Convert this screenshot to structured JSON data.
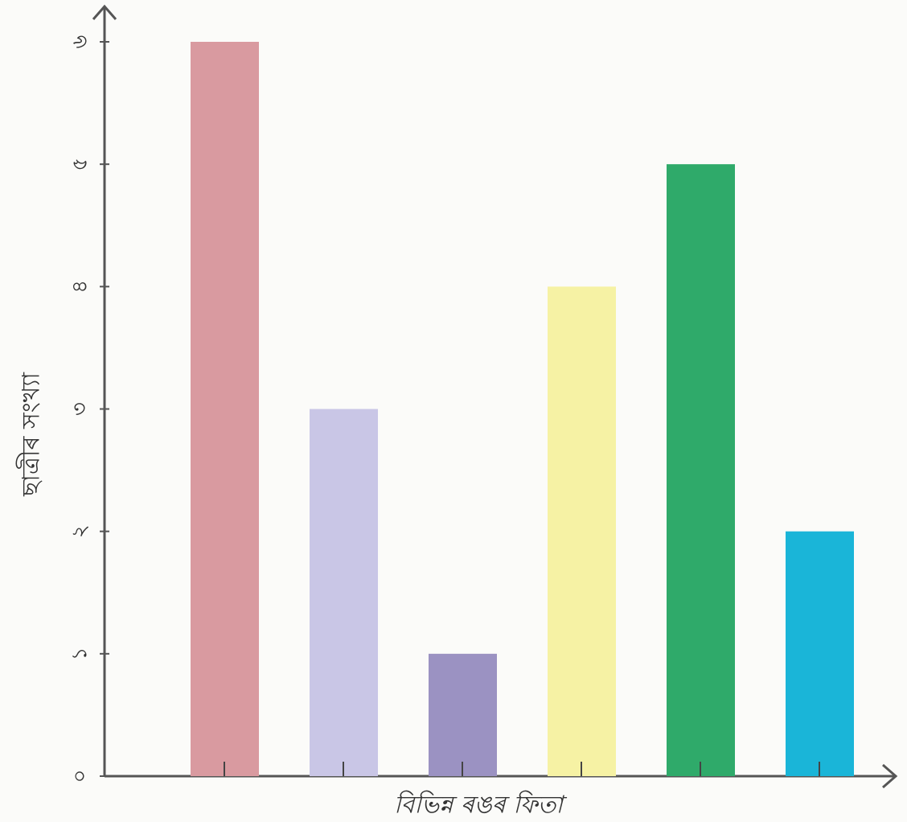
{
  "chart_data": {
    "type": "bar",
    "x_label": "বিভিন্ন ৰঙৰ ফিতা",
    "y_label": "ছাত্ৰীৰ সংখ্যা",
    "categories": [
      null,
      null,
      null,
      null,
      null,
      null
    ],
    "values": [
      6,
      3,
      1,
      4,
      5,
      2
    ],
    "colors": [
      "#d99aa0",
      "#c9c6e6",
      "#9b92c2",
      "#f6f2a4",
      "#2faa6a",
      "#1ab5d8"
    ],
    "ylim": [
      0,
      6
    ],
    "yticks": [
      {
        "value": 0,
        "label": "০"
      },
      {
        "value": 1,
        "label": "১"
      },
      {
        "value": 2,
        "label": "২"
      },
      {
        "value": 3,
        "label": "৩"
      },
      {
        "value": 4,
        "label": "৪"
      },
      {
        "value": 5,
        "label": "৫"
      },
      {
        "value": 6,
        "label": "৬"
      }
    ]
  }
}
